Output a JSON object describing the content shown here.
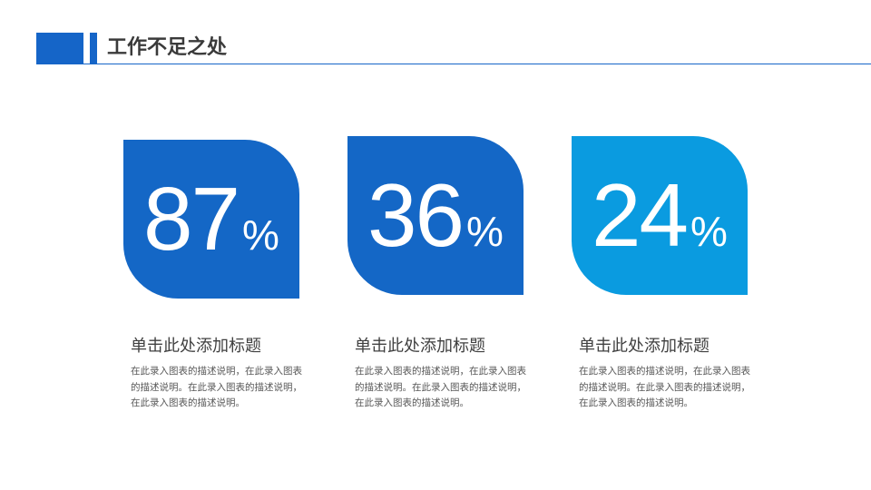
{
  "header": {
    "title": "工作不足之处"
  },
  "cards": [
    {
      "value": "87",
      "unit": "%",
      "color": "#1467c6",
      "title": "单击此处添加标题",
      "description": "在此录入图表的描述说明，在此录入图表的描述说明。在此录入图表的描述说明，在此录入图表的描述说明。"
    },
    {
      "value": "36",
      "unit": "%",
      "color": "#1467c6",
      "title": "单击此处添加标题",
      "description": "在此录入图表的描述说明，在此录入图表的描述说明。在此录入图表的描述说明，在此录入图表的描述说明。"
    },
    {
      "value": "24",
      "unit": "%",
      "color": "#0a9be0",
      "title": "单击此处添加标题",
      "description": "在此录入图表的描述说明，在此录入图表的描述说明。在此录入图表的描述说明，在此录入图表的描述说明。"
    }
  ]
}
